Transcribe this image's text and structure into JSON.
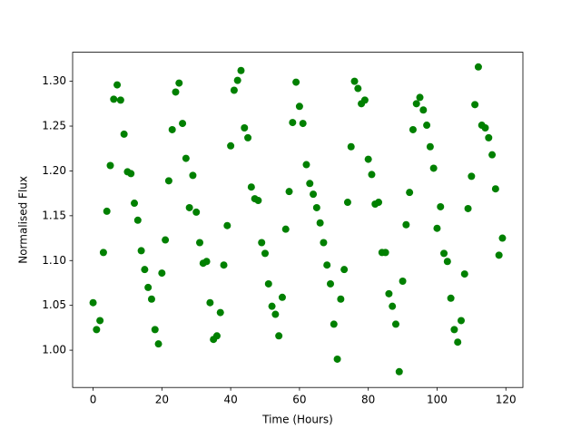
{
  "chart_data": {
    "type": "scatter",
    "xlabel": "Time (Hours)",
    "ylabel": "Normalised Flux",
    "xlim": [
      -5.95,
      124.95
    ],
    "ylim": [
      0.9584,
      1.3324
    ],
    "xticks": [
      0,
      20,
      40,
      60,
      80,
      100,
      120
    ],
    "yticks": [
      {
        "value": 1.0,
        "label": "1.00"
      },
      {
        "value": 1.05,
        "label": "1.05"
      },
      {
        "value": 1.1,
        "label": "1.10"
      },
      {
        "value": 1.15,
        "label": "1.15"
      },
      {
        "value": 1.2,
        "label": "1.20"
      },
      {
        "value": 1.25,
        "label": "1.25"
      },
      {
        "value": 1.3,
        "label": "1.30"
      }
    ],
    "series": [
      {
        "color": "#008000",
        "x": [
          0,
          1,
          2,
          3,
          4,
          5,
          6,
          7,
          8,
          9,
          10,
          11,
          12,
          13,
          14,
          15,
          16,
          17,
          18,
          19,
          20,
          21,
          22,
          23,
          24,
          25,
          26,
          27,
          28,
          29,
          30,
          31,
          32,
          33,
          34,
          35,
          36,
          37,
          38,
          39,
          40,
          41,
          42,
          43,
          44,
          45,
          46,
          47,
          48,
          49,
          50,
          51,
          52,
          53,
          54,
          55,
          56,
          57,
          58,
          59,
          60,
          61,
          62,
          63,
          64,
          65,
          66,
          67,
          68,
          69,
          70,
          71,
          72,
          73,
          74,
          75,
          76,
          77,
          78,
          79,
          80,
          81,
          82,
          83,
          84,
          85,
          86,
          87,
          88,
          89,
          90,
          91,
          92,
          93,
          94,
          95,
          96,
          97,
          98,
          99,
          100,
          101,
          102,
          103,
          104,
          105,
          106,
          107,
          108,
          109,
          110,
          111,
          112,
          113,
          114,
          115,
          116,
          117,
          118,
          119
        ],
        "values": [
          1.053,
          1.023,
          1.033,
          1.109,
          1.155,
          1.206,
          1.28,
          1.296,
          1.279,
          1.241,
          1.199,
          1.197,
          1.164,
          1.145,
          1.111,
          1.09,
          1.07,
          1.057,
          1.023,
          1.007,
          1.086,
          1.123,
          1.189,
          1.246,
          1.288,
          1.298,
          1.253,
          1.214,
          1.159,
          1.195,
          1.154,
          1.12,
          1.097,
          1.099,
          1.053,
          1.012,
          1.016,
          1.042,
          1.095,
          1.139,
          1.228,
          1.29,
          1.301,
          1.312,
          1.248,
          1.237,
          1.182,
          1.169,
          1.167,
          1.12,
          1.108,
          1.074,
          1.049,
          1.04,
          1.016,
          1.059,
          1.135,
          1.177,
          1.254,
          1.299,
          1.272,
          1.253,
          1.207,
          1.186,
          1.174,
          1.159,
          1.142,
          1.12,
          1.095,
          1.074,
          1.029,
          0.99,
          1.057,
          1.09,
          1.165,
          1.227,
          1.3,
          1.292,
          1.275,
          1.279,
          1.213,
          1.196,
          1.163,
          1.165,
          1.109,
          1.109,
          1.063,
          1.049,
          1.029,
          0.976,
          1.077,
          1.14,
          1.176,
          1.246,
          1.275,
          1.282,
          1.268,
          1.251,
          1.227,
          1.203,
          1.136,
          1.16,
          1.108,
          1.099,
          1.058,
          1.023,
          1.009,
          1.033,
          1.085,
          1.158,
          1.194,
          1.274,
          1.316,
          1.251,
          1.248,
          1.237,
          1.218,
          1.18,
          1.106,
          1.125
        ]
      }
    ]
  }
}
